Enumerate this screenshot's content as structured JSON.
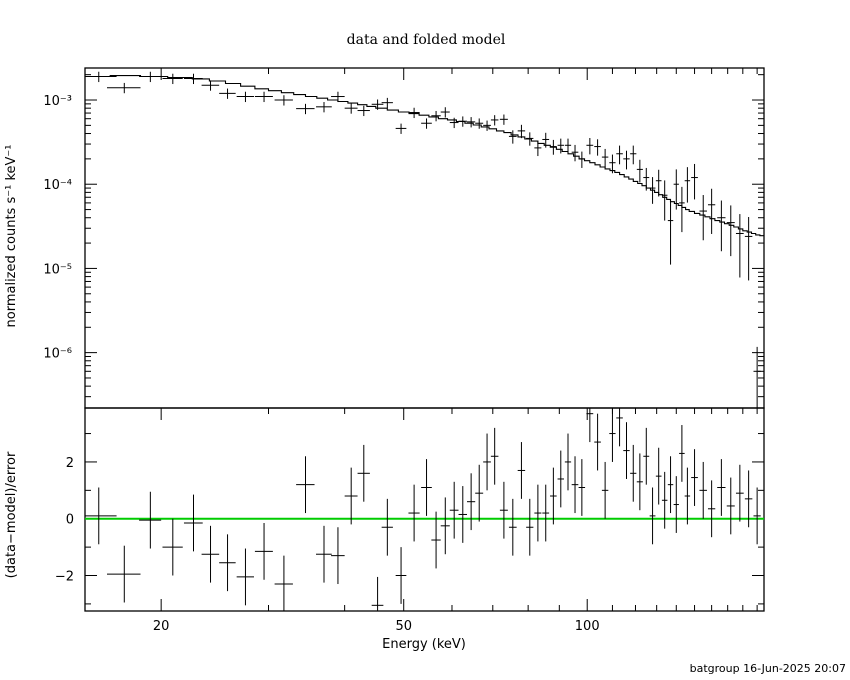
{
  "chart_data": [
    {
      "type": "scatter",
      "title": "data and folded model",
      "xlabel": "",
      "ylabel": "normalized counts s⁻¹ keV⁻¹",
      "xscale": "log",
      "yscale": "log",
      "xlim": [
        15,
        195
      ],
      "ylim": [
        2.2e-07,
        0.0024
      ],
      "ytick_labels": [
        "10⁻³",
        "10⁻⁴",
        "10⁻⁵",
        "10⁻⁶"
      ],
      "ytick_values": [
        0.001,
        0.0001,
        1e-05,
        1e-06
      ],
      "series": [
        {
          "name": "",
          "kind": "data-with-errorbars",
          "x": [
            15.8,
            17.4,
            19.2,
            20.9,
            22.6,
            24.1,
            25.7,
            27.5,
            29.5,
            31.8,
            34.5,
            37.0,
            39.0,
            41.0,
            43.0,
            45.3,
            47.0,
            49.5,
            52.0,
            54.5,
            56.5,
            58.5,
            60.5,
            62.5,
            64.5,
            66.5,
            68.5,
            70.5,
            73.0,
            75.5,
            78.0,
            80.5,
            83.0,
            85.5,
            88.0,
            90.5,
            93.0,
            95.5,
            98.0,
            101.0,
            104.0,
            107.0,
            110.0,
            113.0,
            116.0,
            119.0,
            122.0,
            125.0,
            128.0,
            131.0,
            134.0,
            137.0,
            140.0,
            143.0,
            146.0,
            150.0,
            155.0,
            160.0,
            166.0,
            172.0,
            178.0,
            184.0,
            190.0
          ],
          "y": [
            0.0019,
            0.0014,
            0.0019,
            0.0018,
            0.0018,
            0.0015,
            0.0012,
            0.0011,
            0.0011,
            0.001,
            0.00079,
            0.00083,
            0.0011,
            0.0008,
            0.00075,
            0.00089,
            0.00093,
            0.00046,
            0.00071,
            0.00053,
            0.00065,
            0.00072,
            0.00054,
            0.00056,
            0.00055,
            0.00053,
            0.0005,
            0.00058,
            0.00059,
            0.00037,
            0.00043,
            0.00035,
            0.00027,
            0.00034,
            0.00028,
            0.00029,
            0.00029,
            0.00024,
            0.0002,
            0.00029,
            0.00028,
            0.00021,
            0.00018,
            0.00023,
            0.0002,
            0.00023,
            0.00015,
            0.00012,
            9e-05,
            0.00011,
            7.4e-05,
            3.7e-05,
            0.0001,
            6e-05,
            0.00011,
            0.00012,
            4.8e-05,
            5.7e-05,
            4e-05,
            3.5e-05,
            2.6e-05,
            2.4e-05,
            6e-07
          ],
          "xerr": [
            1.1,
            1.1,
            0.8,
            0.8,
            0.8,
            0.8,
            0.8,
            0.9,
            1.0,
            1.1,
            1.2,
            1.1,
            1.0,
            1.0,
            1.0,
            1.0,
            1.0,
            1.0,
            1.1,
            1.1,
            1.0,
            1.0,
            1.0,
            1.0,
            1.0,
            1.0,
            1.0,
            1.0,
            1.1,
            1.1,
            1.1,
            1.1,
            1.1,
            1.1,
            1.1,
            1.1,
            1.1,
            1.2,
            1.2,
            1.3,
            1.3,
            1.3,
            1.3,
            1.4,
            1.4,
            1.4,
            1.4,
            1.4,
            1.4,
            1.4,
            1.4,
            1.4,
            1.4,
            1.5,
            1.5,
            1.9,
            2.2,
            2.2,
            2.6,
            2.6,
            2.6,
            2.6,
            2.6
          ],
          "yerr_frac": [
            0.14,
            0.14,
            0.14,
            0.14,
            0.14,
            0.14,
            0.14,
            0.14,
            0.14,
            0.14,
            0.14,
            0.14,
            0.14,
            0.14,
            0.14,
            0.14,
            0.14,
            0.14,
            0.14,
            0.14,
            0.14,
            0.14,
            0.14,
            0.14,
            0.14,
            0.14,
            0.14,
            0.14,
            0.14,
            0.18,
            0.18,
            0.18,
            0.2,
            0.2,
            0.2,
            0.2,
            0.2,
            0.22,
            0.22,
            0.22,
            0.22,
            0.25,
            0.25,
            0.25,
            0.25,
            0.25,
            0.3,
            0.3,
            0.35,
            0.35,
            0.5,
            0.7,
            0.5,
            0.55,
            0.45,
            0.45,
            0.55,
            0.55,
            0.6,
            0.6,
            0.7,
            0.7,
            0.95
          ]
        },
        {
          "name": "",
          "kind": "folded-model-step",
          "x_edges": [
            14.0,
            16.5,
            18.5,
            20.5,
            22.5,
            24.0,
            25.5,
            27.0,
            28.5,
            30.0,
            31.5,
            33.0,
            34.5,
            36.0,
            37.5,
            39.0,
            40.5,
            42.0,
            43.5,
            45.0,
            47.0,
            49.0,
            51.0,
            53.0,
            55.0,
            57.0,
            59.0,
            61.0,
            63.0,
            65.0,
            67.0,
            69.0,
            71.0,
            73.0,
            75.0,
            77.0,
            79.0,
            81.0,
            83.0,
            85.0,
            87.0,
            89.0,
            91.0,
            93.0,
            95.0,
            97.0,
            99.0,
            101.0,
            103.0,
            105.0,
            107.0,
            109.0,
            111.0,
            113.0,
            115.0,
            117.0,
            119.0,
            121.0,
            123.0,
            125.0,
            127.0,
            129.0,
            131.0,
            133.0,
            135.0,
            137.0,
            139.0,
            141.0,
            143.0,
            145.0,
            147.0,
            150.0,
            153.0,
            156.0,
            159.0,
            162.0,
            165.0,
            168.0,
            171.0,
            174.0,
            177.0,
            180.0,
            183.0,
            186.0,
            189.0,
            192.0,
            195.0
          ],
          "y": [
            0.0019,
            0.00195,
            0.0019,
            0.00185,
            0.00178,
            0.00168,
            0.00157,
            0.00146,
            0.00136,
            0.00129,
            0.00122,
            0.00116,
            0.0011,
            0.00105,
            0.001,
            0.00096,
            0.00092,
            0.00088,
            0.00084,
            0.0008,
            0.00076,
            0.00072,
            0.00069,
            0.00066,
            0.00063,
            0.0006,
            0.00058,
            0.000555,
            0.00053,
            0.000505,
            0.00048,
            0.000455,
            0.00043,
            0.00041,
            0.000385,
            0.000365,
            0.000345,
            0.000325,
            0.000305,
            0.00029,
            0.000275,
            0.00026,
            0.000245,
            0.00023,
            0.000215,
            0.0002,
            0.00019,
            0.00018,
            0.00017,
            0.00016,
            0.000152,
            0.000145,
            0.000138,
            0.00013,
            0.000122,
            0.000115,
            0.000108,
            0.000102,
            9.6e-05,
            9e-05,
            8.5e-05,
            8e-05,
            7.5e-05,
            7e-05,
            6.6e-05,
            6.2e-05,
            5.9e-05,
            5.6e-05,
            5.3e-05,
            5e-05,
            4.75e-05,
            4.5e-05,
            4.3e-05,
            4.1e-05,
            3.9e-05,
            3.7e-05,
            3.55e-05,
            3.4e-05,
            3.25e-05,
            3.1e-05,
            2.95e-05,
            2.8e-05,
            2.7e-05,
            2.6e-05,
            2.5e-05,
            2.45e-05
          ]
        }
      ]
    },
    {
      "type": "scatter",
      "title": "",
      "xlabel": "Energy (keV)",
      "ylabel": "(data−model)/error",
      "xscale": "log",
      "yscale": "linear",
      "xlim": [
        15,
        195
      ],
      "ylim": [
        -3.25,
        3.9
      ],
      "xtick_labels": [
        "20",
        "50",
        "100"
      ],
      "xtick_values": [
        20,
        50,
        100
      ],
      "ytick_labels": [
        "2",
        "0",
        "−2"
      ],
      "ytick_values": [
        2,
        0,
        -2
      ],
      "reference_line": {
        "y": 0,
        "color": "#00cc00"
      },
      "series": [
        {
          "name": "",
          "kind": "residuals-with-errorbars",
          "x": [
            15.8,
            17.4,
            19.2,
            20.9,
            22.6,
            24.1,
            25.7,
            27.5,
            29.5,
            31.8,
            34.5,
            37.0,
            39.0,
            41.0,
            43.0,
            45.3,
            47.0,
            49.5,
            52.0,
            54.5,
            56.5,
            58.5,
            60.5,
            62.5,
            64.5,
            66.5,
            68.5,
            70.5,
            73.0,
            75.5,
            78.0,
            80.5,
            83.0,
            85.5,
            88.0,
            90.5,
            93.0,
            95.5,
            98.0,
            101.0,
            104.0,
            107.0,
            110.0,
            113.0,
            116.0,
            119.0,
            122.0,
            125.0,
            128.0,
            131.0,
            134.0,
            137.0,
            140.0,
            143.0,
            146.0,
            150.0,
            155.0,
            160.0,
            166.0,
            172.0,
            178.0,
            184.0,
            190.0
          ],
          "y": [
            0.1,
            -1.95,
            -0.05,
            -1.0,
            -0.15,
            -1.25,
            -1.55,
            -2.05,
            -1.15,
            -2.3,
            1.2,
            -1.25,
            -1.3,
            0.8,
            1.6,
            -3.05,
            -0.3,
            -2.0,
            0.2,
            1.1,
            -0.75,
            -0.25,
            0.3,
            0.15,
            0.6,
            0.9,
            2.0,
            2.2,
            0.3,
            -0.3,
            1.7,
            -0.3,
            0.2,
            0.2,
            0.8,
            1.4,
            2.0,
            1.2,
            1.1,
            3.7,
            2.7,
            1.0,
            3.0,
            3.55,
            2.4,
            1.6,
            1.3,
            2.2,
            0.1,
            1.5,
            0.65,
            1.2,
            0.5,
            2.3,
            0.8,
            1.45,
            1.0,
            0.35,
            1.1,
            0.45,
            0.9,
            0.7,
            0.1
          ],
          "xerr": [
            1.1,
            1.1,
            0.8,
            0.8,
            0.8,
            0.8,
            0.8,
            0.9,
            1.0,
            1.1,
            1.2,
            1.1,
            1.0,
            1.0,
            1.0,
            1.0,
            1.0,
            1.0,
            1.1,
            1.1,
            1.0,
            1.0,
            1.0,
            1.0,
            1.0,
            1.0,
            1.0,
            1.0,
            1.1,
            1.1,
            1.1,
            1.1,
            1.1,
            1.1,
            1.1,
            1.1,
            1.1,
            1.2,
            1.2,
            1.3,
            1.3,
            1.3,
            1.3,
            1.4,
            1.4,
            1.4,
            1.4,
            1.4,
            1.4,
            1.4,
            1.4,
            1.4,
            1.4,
            1.5,
            1.5,
            1.9,
            2.2,
            2.2,
            2.6,
            2.6,
            2.6,
            2.6,
            2.6
          ],
          "yerr": 1.0
        }
      ]
    }
  ],
  "footer": {
    "stamp": "batgroup 16-Jun-2025 20:07"
  }
}
